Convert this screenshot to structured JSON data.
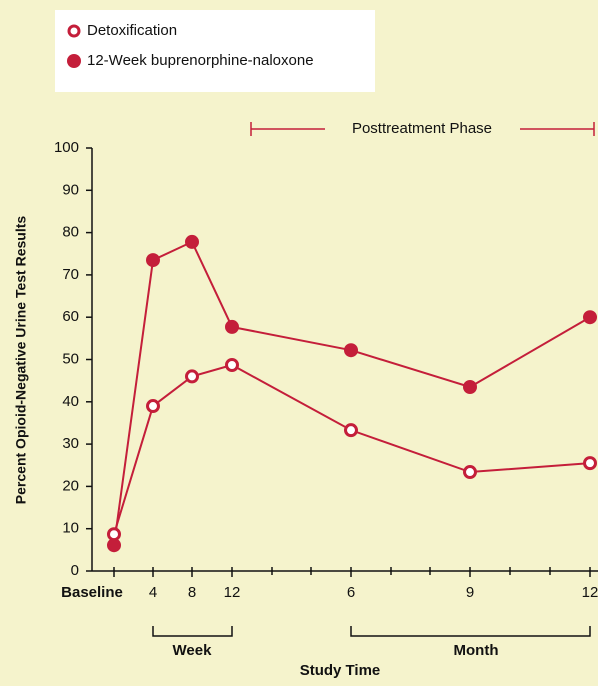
{
  "chart_data": {
    "type": "line",
    "categories": [
      "Baseline",
      "4",
      "8",
      "12",
      "6",
      "9",
      "12"
    ],
    "series": [
      {
        "name": "Detoxification",
        "color": "#c41e3a",
        "marker": "hollow",
        "values": [
          8.7,
          39,
          46,
          48.7,
          33.3,
          23.4,
          25.5
        ]
      },
      {
        "name": "12-Week buprenorphine-naloxone",
        "color": "#c41e3a",
        "marker": "filled",
        "values": [
          6.1,
          73.5,
          77.8,
          57.7,
          52.2,
          43.5,
          60
        ]
      }
    ],
    "ylim": [
      0,
      100
    ],
    "yticks": [
      0,
      10,
      20,
      30,
      40,
      50,
      60,
      70,
      80,
      90,
      100
    ],
    "ylabel": "Percent Opioid-Negative Urine Test Results",
    "xlabel": "Study Time",
    "annotations": {
      "phase": "Posttreatment Phase",
      "week": "Week",
      "month": "Month"
    },
    "grid": false
  }
}
